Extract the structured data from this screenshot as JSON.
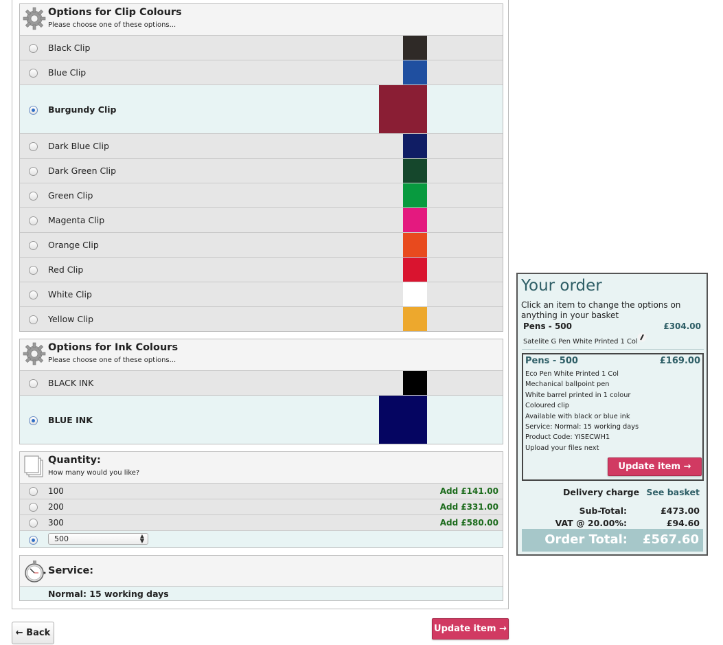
{
  "clip_section": {
    "title": "Options for Clip Colours",
    "subtitle": "Please choose one of these options...",
    "options": [
      {
        "label": "Black Clip",
        "color": "#2f2a27",
        "selected": false
      },
      {
        "label": "Blue Clip",
        "color": "#1f4fa0",
        "selected": false
      },
      {
        "label": "Burgundy Clip",
        "color": "#8a1e34",
        "selected": true
      },
      {
        "label": "Dark Blue Clip",
        "color": "#101d64",
        "selected": false
      },
      {
        "label": "Dark Green Clip",
        "color": "#15472c",
        "selected": false
      },
      {
        "label": "Green Clip",
        "color": "#089a3f",
        "selected": false
      },
      {
        "label": "Magenta Clip",
        "color": "#e4197f",
        "selected": false
      },
      {
        "label": "Orange Clip",
        "color": "#e84a1e",
        "selected": false
      },
      {
        "label": "Red Clip",
        "color": "#d9142f",
        "selected": false
      },
      {
        "label": "White Clip",
        "color": "#ffffff",
        "selected": false
      },
      {
        "label": "Yellow Clip",
        "color": "#eda82d",
        "selected": false
      }
    ]
  },
  "ink_section": {
    "title": "Options for Ink Colours",
    "subtitle": "Please choose one of these options...",
    "options": [
      {
        "label": "BLACK INK",
        "color": "#000000",
        "selected": false
      },
      {
        "label": "BLUE INK",
        "color": "#050561",
        "selected": true
      }
    ]
  },
  "quantity_section": {
    "title": "Quantity:",
    "subtitle": "How many would you like?",
    "options": [
      {
        "label": "100",
        "add": "Add £141.00"
      },
      {
        "label": "200",
        "add": "Add £331.00"
      },
      {
        "label": "300",
        "add": "Add £580.00"
      }
    ],
    "selected_value": "500"
  },
  "service_section": {
    "title": "Service:",
    "value": "Normal: 15 working days"
  },
  "buttons": {
    "back": "← Back",
    "update_item": "Update item →"
  },
  "order": {
    "title": "Your order",
    "intro": "Click an item to change the options on anything in your basket",
    "item1": {
      "name": "Pens - 500",
      "price": "£304.00",
      "desc": "Satelite G Pen White Printed 1 Col"
    },
    "item2": {
      "name": "Pens - 500",
      "price": "£169.00",
      "lines": [
        "Eco Pen White Printed 1 Col",
        "Mechanical ballpoint pen",
        "White barrel printed in 1 colour",
        "Coloured clip",
        "Available with black or blue ink",
        "Service: Normal: 15 working days",
        "Product Code: YISECWH1",
        "Upload your files next"
      ],
      "button": "Update item →"
    },
    "delivery_label": "Delivery charge",
    "see_basket": "See basket",
    "subtotal_label": "Sub-Total:",
    "subtotal": "£473.00",
    "vat_label": "VAT @ 20.00%:",
    "vat": "£94.60",
    "total_label": "Order Total:",
    "total": "£567.60"
  }
}
